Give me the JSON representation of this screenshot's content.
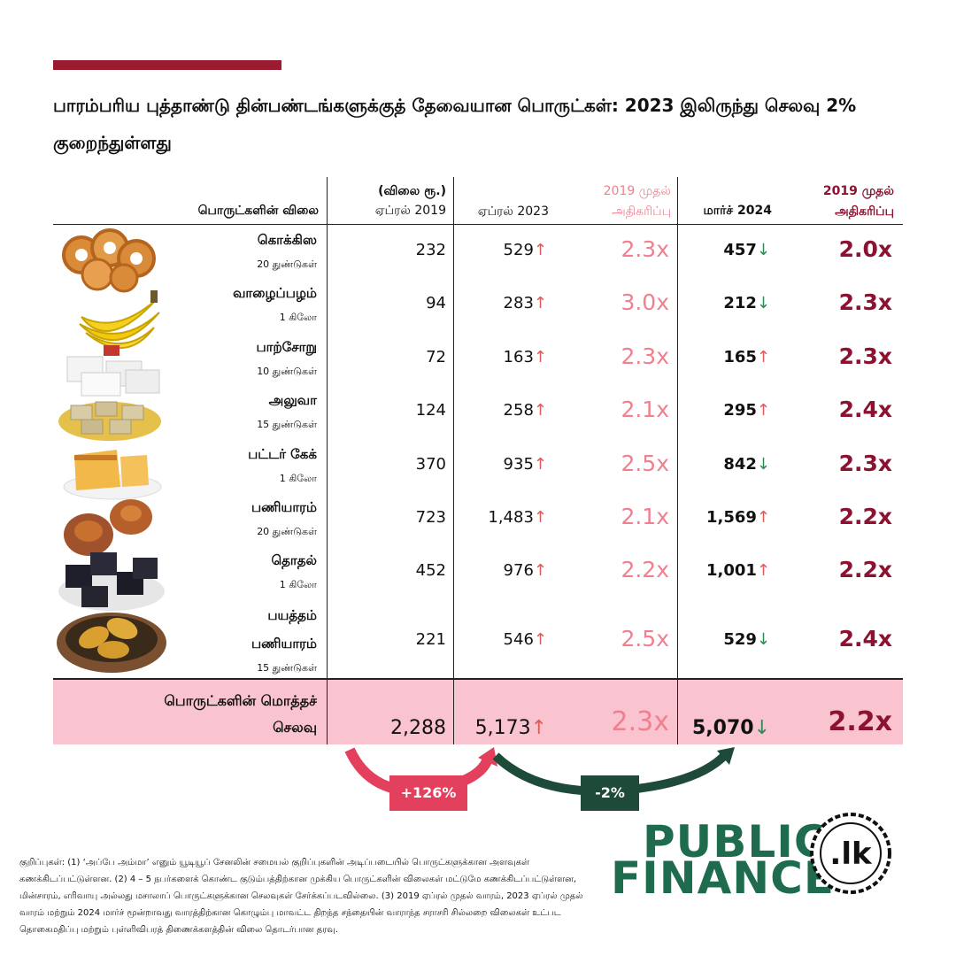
{
  "title": "பாரம்பரிய புத்தாண்டு தின்பண்டங்களுக்குத் தேவையான பொருட்கள்: 2023 இலிருந்து செலவு 2% குறைந்துள்ளது",
  "headers": {
    "item": "பொருட்களின் விலை",
    "col2019_top": "(விலை ரூ.)",
    "col2019": "ஏப்ரல் 2019",
    "col2023": "ஏப்ரல் 2023",
    "inc_top": "2019 முதல்",
    "inc_bottom": "அதிகரிப்பு",
    "col2024": "மார்ச் 2024",
    "inc2_top": "2019 முதல்",
    "inc2_bottom": "அதிகரிப்பு"
  },
  "chart_data": {
    "type": "table",
    "columns": [
      "பொருட்களின் விலை",
      "ஏப்ரல் 2019",
      "ஏப்ரல் 2023",
      "2019 முதல் அதிகரிப்பு",
      "மார்ச் 2024",
      "2019 முதல் அதிகரிப்பு"
    ],
    "rows": [
      {
        "name": "கொக்கிஸ",
        "name2": "",
        "qty": "20 துண்டுகள்",
        "p2019": "232",
        "p2023": "529",
        "d2023": "up",
        "x2023": "2.3x",
        "p2024": "457",
        "d2024": "down",
        "x2024": "2.0x"
      },
      {
        "name": "வாழைப்பழம்",
        "name2": "",
        "qty": "1 கிலோ",
        "p2019": "94",
        "p2023": "283",
        "d2023": "up",
        "x2023": "3.0x",
        "p2024": "212",
        "d2024": "down",
        "x2024": "2.3x"
      },
      {
        "name": "பாற்சோறு",
        "name2": "",
        "qty": "10 துண்டுகள்",
        "p2019": "72",
        "p2023": "163",
        "d2023": "up",
        "x2023": "2.3x",
        "p2024": "165",
        "d2024": "up",
        "x2024": "2.3x"
      },
      {
        "name": "அலுவா",
        "name2": "",
        "qty": "15 துண்டுகள்",
        "p2019": "124",
        "p2023": "258",
        "d2023": "up",
        "x2023": "2.1x",
        "p2024": "295",
        "d2024": "up",
        "x2024": "2.4x"
      },
      {
        "name": "பட்டர் கேக்",
        "name2": "",
        "qty": "1 கிலோ",
        "p2019": "370",
        "p2023": "935",
        "d2023": "up",
        "x2023": "2.5x",
        "p2024": "842",
        "d2024": "down",
        "x2024": "2.3x"
      },
      {
        "name": "பணியாரம்",
        "name2": "",
        "qty": "20 துண்டுகள்",
        "p2019": "723",
        "p2023": "1,483",
        "d2023": "up",
        "x2023": "2.1x",
        "p2024": "1,569",
        "d2024": "up",
        "x2024": "2.2x"
      },
      {
        "name": "தொதல்",
        "name2": "",
        "qty": "1 கிலோ",
        "p2019": "452",
        "p2023": "976",
        "d2023": "up",
        "x2023": "2.2x",
        "p2024": "1,001",
        "d2024": "up",
        "x2024": "2.2x"
      },
      {
        "name": "பயத்தம்",
        "name2": "பணியாரம்",
        "qty": "15 துண்டுகள்",
        "p2019": "221",
        "p2023": "546",
        "d2023": "up",
        "x2023": "2.5x",
        "p2024": "529",
        "d2024": "down",
        "x2024": "2.4x"
      }
    ],
    "total": {
      "name": "பொருட்களின் மொத்தச்",
      "name2": "செலவு",
      "p2019": "2,288",
      "p2023": "5,173",
      "d2023": "up",
      "x2023": "2.3x",
      "p2024": "5,070",
      "d2024": "down",
      "x2024": "2.2x"
    },
    "changes": {
      "c2019_2023": "+126%",
      "c2023_2024": "-2%"
    }
  },
  "colors": {
    "accent_red": "#9b1b30",
    "pink": "#f08090",
    "green": "#1e6b4e",
    "total_bg": "#f9c4cf"
  },
  "icons": {
    "up": "↑",
    "down": "↓"
  },
  "logo": {
    "line1": "PUBLIC",
    "line2": "FINANCE",
    "domain": ".lk"
  },
  "notes": "குறிப்புகள்: (1) ‘அப்பே அம்மா’ எனும் யூடியூப் சேனலின் சமையல் குறிப்புகளின் அடிப்படையில் பொருட்களுக்கான அளவுகள் கணக்கிடப்பட்டுள்ளன. (2) 4 – 5 நபர்களைக் கொண்ட குடும்பத்திற்கான முக்கிய பொருட்களின் விலைகள் மட்டுமே கணக்கிடப்பட்டுள்ளன, மின்சாரம், எரிவாயு அல்லது மசாலாப் பொருட்களுக்கான செலவுகள் சேர்க்கப்படவில்லை. (3) 2019 ஏப்ரல் முதல் வாரம், 2023 ஏப்ரல் முதல் வாரம் மற்றும் 2024 மார்ச் மூன்றாவது வாரத்திற்கான கொழும்பு மாவட்ட திறந்த சந்தையின் வாராந்த சராசரி சில்லறை விலைகள் உட்பட தொகைமதிப்பு மற்றும் புள்ளிவிபரத் திணைக்களத்தின் விலை தொடர்பான தரவு."
}
